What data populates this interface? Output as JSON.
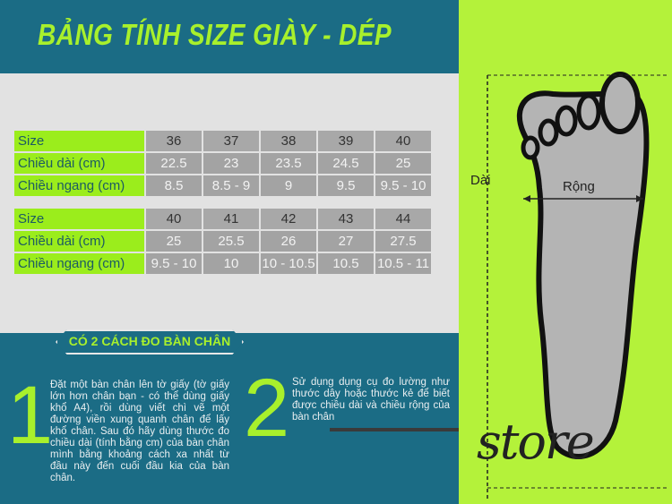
{
  "title": "BẢNG TÍNH SIZE GIÀY -  DÉP",
  "row_labels": {
    "size": "Size",
    "length": "Chiều dài (cm)",
    "width": "Chiều ngang (cm)"
  },
  "table1": {
    "sizes": [
      "36",
      "37",
      "38",
      "39",
      "40"
    ],
    "lengths": [
      "22.5",
      "23",
      "23.5",
      "24.5",
      "25"
    ],
    "widths": [
      "8.5",
      "8.5 - 9",
      "9",
      "9.5",
      "9.5 - 10"
    ]
  },
  "table2": {
    "sizes": [
      "40",
      "41",
      "42",
      "43",
      "44"
    ],
    "lengths": [
      "25",
      "25.5",
      "26",
      "27",
      "27.5"
    ],
    "widths": [
      "9.5 - 10",
      "10",
      "10 - 10.5",
      "10.5",
      "10.5 - 11"
    ]
  },
  "methods_title": "CÓ 2 CÁCH ĐO BÀN CHÂN",
  "method1": {
    "number": "1",
    "text": "Đặt một bàn chân lên tờ giấy (tờ giấy lớn hơn chân bạn - có thể dùng giấy khổ A4), rồi dùng viết chì vẽ một đường viền xung quanh chân để lấy khổ chân. Sau đó hãy dùng thước đo chiều dài (tính bằng cm) của bàn chân mình bằng khoảng cách xa nhất từ đầu này đến cuối đầu kia của bàn chân."
  },
  "method2": {
    "number": "2",
    "text": "Sử  dụng dụng cụ đo lường như thước dây hoặc thước kẻ để biết được chiều dài và chiều rộng của bàn chân"
  },
  "diagram": {
    "length_label": "Dài",
    "width_label": "Rộng"
  },
  "logo_text": "store",
  "colors": {
    "teal": "#1b6c85",
    "lime": "#b4f23a",
    "label_green": "#9bed1c",
    "cell_gray": "#a3a3a3"
  }
}
